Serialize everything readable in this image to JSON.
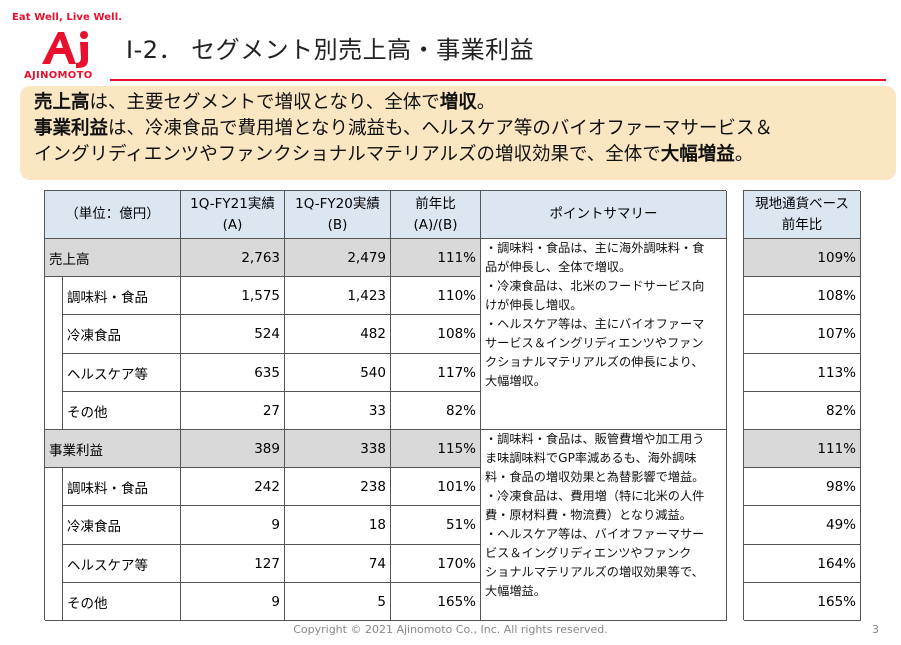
{
  "brand": {
    "tagline": "Eat Well, Live Well.",
    "wordmark": "AJINOMOTO",
    "mark": "Aj",
    "color": "#e8112d"
  },
  "slide": {
    "title": "Ⅰ-2．  セグメント別売上高・事業利益"
  },
  "summary": {
    "bg": "#fbe6c2",
    "line1": {
      "lead": "売上高",
      "mid": "は、主要セグメントで増収となり、全体で",
      "tail": "増収",
      "end": "。"
    },
    "line2": {
      "lead": "事業利益",
      "mid": "は、冷凍食品で費用増となり減益も、ヘルスケア等のバイオファーマサービス＆"
    },
    "line3": {
      "mid": "イングリディエンツやファンクショナルマテリアルズの増収効果で、全体で",
      "tail": "大幅増益",
      "end": "。"
    }
  },
  "table": {
    "headers": {
      "unit": "（単位：億円）",
      "fy21_line1": "1Q-FY21実績",
      "fy21_line2": "(A)",
      "fy20_line1": "1Q-FY20実績",
      "fy20_line2": "(B)",
      "yoy_line1": "前年比",
      "yoy_line2": "(A)/(B)",
      "points": "ポイントサマリー",
      "local_line1": "現地通貨ベース",
      "local_line2": "前年比"
    },
    "rows": [
      {
        "label": "売上高",
        "fy21": "2,763",
        "fy20": "2,479",
        "yoy": "111%",
        "local": "109%"
      },
      {
        "label": "調味料・食品",
        "fy21": "1,575",
        "fy20": "1,423",
        "yoy": "110%",
        "local": "108%"
      },
      {
        "label": "冷凍食品",
        "fy21": "524",
        "fy20": "482",
        "yoy": "108%",
        "local": "107%"
      },
      {
        "label": "ヘルスケア等",
        "fy21": "635",
        "fy20": "540",
        "yoy": "117%",
        "local": "113%"
      },
      {
        "label": "その他",
        "fy21": "27",
        "fy20": "33",
        "yoy": "82%",
        "local": "82%"
      },
      {
        "label": "事業利益",
        "fy21": "389",
        "fy20": "338",
        "yoy": "115%",
        "local": "111%"
      },
      {
        "label": "調味料・食品",
        "fy21": "242",
        "fy20": "238",
        "yoy": "101%",
        "local": "98%"
      },
      {
        "label": "冷凍食品",
        "fy21": "9",
        "fy20": "18",
        "yoy": "51%",
        "local": "49%"
      },
      {
        "label": "ヘルスケア等",
        "fy21": "127",
        "fy20": "74",
        "yoy": "170%",
        "local": "164%"
      },
      {
        "label": "その他",
        "fy21": "9",
        "fy20": "5",
        "yoy": "165%",
        "local": "165%"
      }
    ],
    "notes_sales": [
      "・調味料・食品は、主に海外調味料・食",
      "品が伸長し、全体で増収。",
      "・冷凍食品は、北米のフードサービス向",
      "けが伸長し増収。",
      "・ヘルスケア等は、主にバイオファーマ",
      "サービス＆イングリディエンツやファン",
      "クショナルマテリアルズの伸長により、",
      "大幅増収。"
    ],
    "notes_profit": [
      "・調味料・食品は、販管費増や加工用う",
      "ま味調味料でGP率減あるも、海外調味",
      "料・食品の増収効果と為替影響で増益。",
      "・冷凍食品は、費用増（特に北米の人件",
      "費・原材料費・物流費）となり減益。",
      "・ヘルスケア等は、バイオファーマサー",
      "ビス＆イングリディエンツやファンク",
      "ショナルマテリアルズの増収効果等で、",
      "大幅増益。"
    ],
    "header_bg": "#dce6f1",
    "shade_bg": "#d9d9d9"
  },
  "footer": {
    "copyright": "Copyright © 2021 Ajinomoto Co., Inc. All rights reserved.",
    "page": "3"
  }
}
